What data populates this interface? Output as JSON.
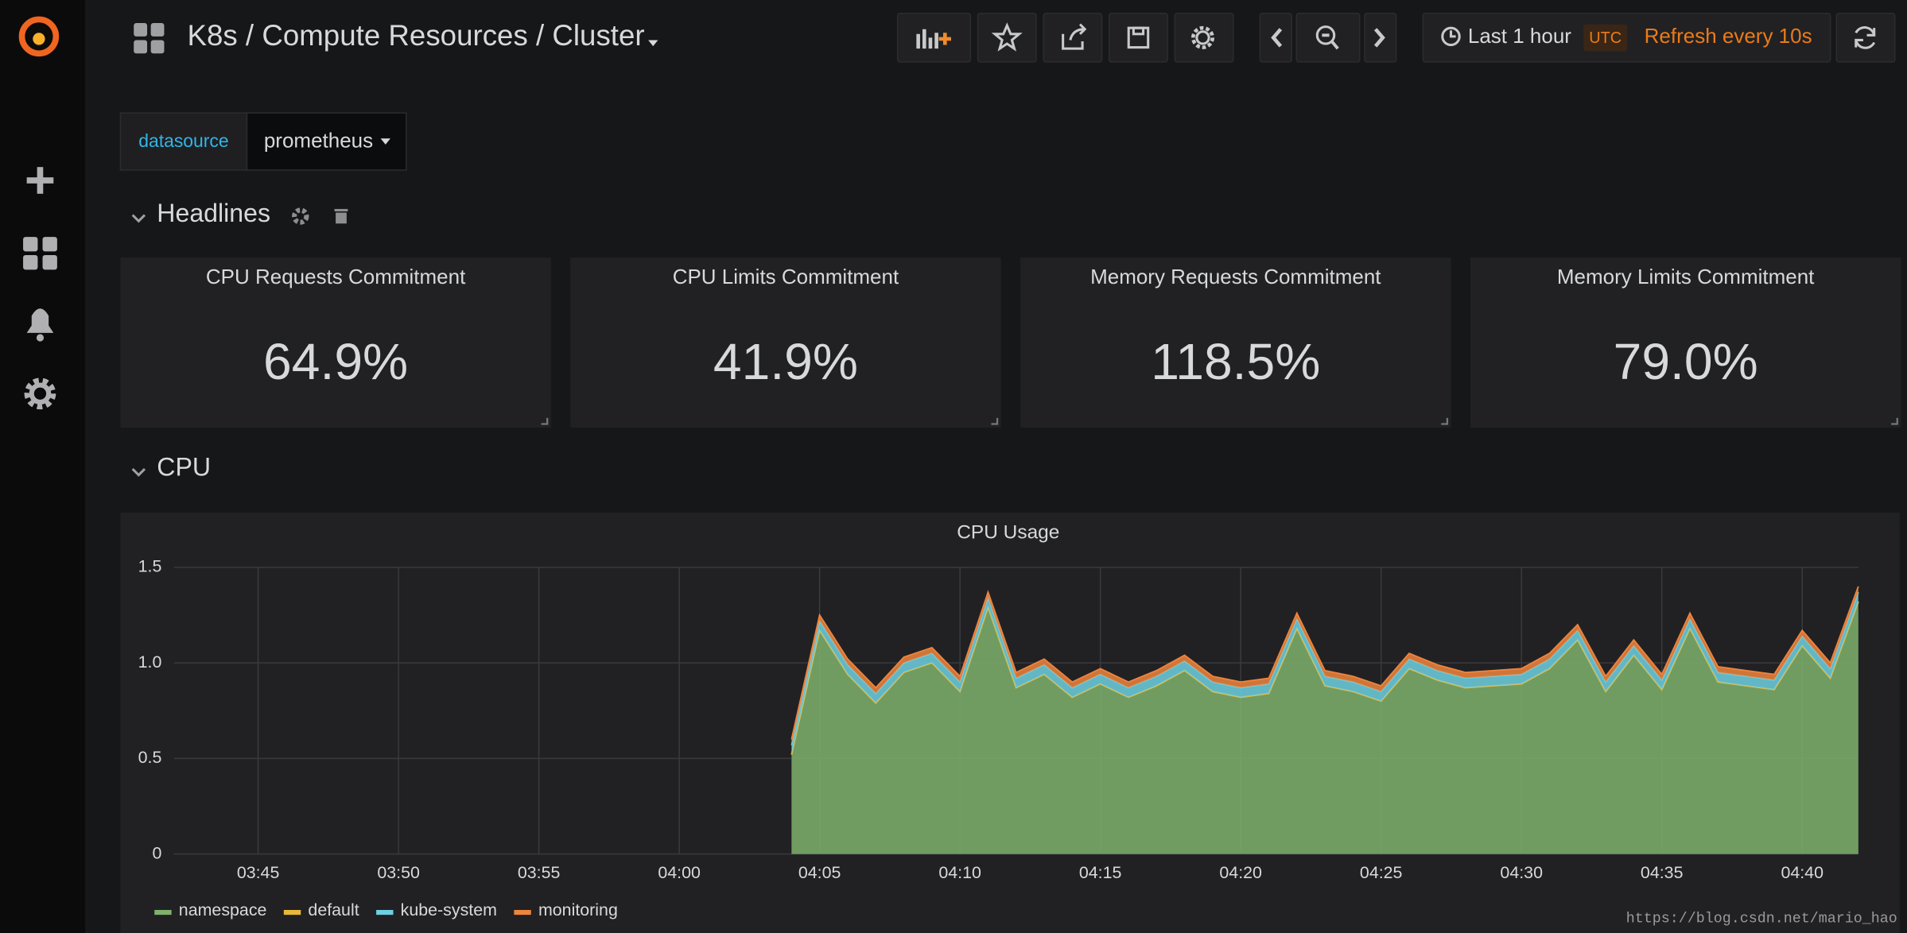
{
  "header": {
    "title": "K8s / Compute Resources / Cluster",
    "time_range": "Last 1 hour",
    "timezone": "UTC",
    "refresh": "Refresh every 10s"
  },
  "variables": [
    {
      "label": "datasource",
      "value": "prometheus"
    }
  ],
  "rows": [
    {
      "title": "Headlines"
    },
    {
      "title": "CPU"
    }
  ],
  "stats": [
    {
      "title": "CPU Requests Commitment",
      "value": "64.9%"
    },
    {
      "title": "CPU Limits Commitment",
      "value": "41.9%"
    },
    {
      "title": "Memory Requests Commitment",
      "value": "118.5%"
    },
    {
      "title": "Memory Limits Commitment",
      "value": "79.0%"
    }
  ],
  "chart_data": {
    "type": "area",
    "stacked": true,
    "title": "CPU Usage",
    "x": [
      "04:04",
      "04:05",
      "04:06",
      "04:07",
      "04:08",
      "04:09",
      "04:10",
      "04:11",
      "04:12",
      "04:13",
      "04:14",
      "04:15",
      "04:16",
      "04:17",
      "04:18",
      "04:19",
      "04:20",
      "04:21",
      "04:22",
      "04:23",
      "04:24",
      "04:25",
      "04:26",
      "04:27",
      "04:28",
      "04:29",
      "04:30",
      "04:31",
      "04:32",
      "04:33",
      "04:34",
      "04:35",
      "04:36",
      "04:37",
      "04:38",
      "04:39",
      "04:40",
      "04:41",
      "04:42"
    ],
    "series": [
      {
        "name": "namespace",
        "color": "#7eb26d",
        "values": [
          0.52,
          1.17,
          0.94,
          0.79,
          0.95,
          1.0,
          0.85,
          1.29,
          0.87,
          0.94,
          0.82,
          0.89,
          0.82,
          0.88,
          0.96,
          0.85,
          0.82,
          0.84,
          1.18,
          0.88,
          0.85,
          0.8,
          0.97,
          0.91,
          0.87,
          0.88,
          0.89,
          0.97,
          1.12,
          0.85,
          1.04,
          0.86,
          1.18,
          0.9,
          0.88,
          0.86,
          1.09,
          0.92,
          1.32
        ]
      },
      {
        "name": "default",
        "color": "#eab839",
        "values": [
          0,
          0,
          0,
          0,
          0,
          0,
          0,
          0,
          0,
          0,
          0,
          0,
          0,
          0,
          0,
          0,
          0,
          0,
          0,
          0,
          0,
          0,
          0,
          0,
          0,
          0,
          0,
          0,
          0,
          0,
          0,
          0,
          0,
          0,
          0,
          0,
          0,
          0,
          0
        ]
      },
      {
        "name": "kube-system",
        "color": "#6ed0e0",
        "values": [
          0.05,
          0.05,
          0.05,
          0.05,
          0.05,
          0.05,
          0.05,
          0.05,
          0.05,
          0.05,
          0.05,
          0.05,
          0.05,
          0.05,
          0.05,
          0.05,
          0.05,
          0.05,
          0.05,
          0.05,
          0.05,
          0.05,
          0.05,
          0.05,
          0.05,
          0.05,
          0.05,
          0.05,
          0.05,
          0.05,
          0.05,
          0.05,
          0.05,
          0.05,
          0.05,
          0.05,
          0.05,
          0.05,
          0.05
        ]
      },
      {
        "name": "monitoring",
        "color": "#ef843c",
        "values": [
          0.03,
          0.03,
          0.03,
          0.03,
          0.03,
          0.03,
          0.03,
          0.03,
          0.03,
          0.03,
          0.03,
          0.03,
          0.03,
          0.03,
          0.03,
          0.03,
          0.03,
          0.03,
          0.03,
          0.03,
          0.03,
          0.03,
          0.03,
          0.03,
          0.03,
          0.03,
          0.03,
          0.03,
          0.03,
          0.03,
          0.03,
          0.03,
          0.03,
          0.03,
          0.03,
          0.03,
          0.03,
          0.03,
          0.03
        ]
      }
    ],
    "xlim": [
      "03:42",
      "04:42"
    ],
    "xticks": [
      "03:45",
      "03:50",
      "03:55",
      "04:00",
      "04:05",
      "04:10",
      "04:15",
      "04:20",
      "04:25",
      "04:30",
      "04:35",
      "04:40"
    ],
    "ylim": [
      0,
      1.5
    ],
    "yticks": [
      0,
      0.5,
      {
        "value": 1,
        "label": "1.0"
      },
      1.5
    ],
    "grid": true,
    "legend": "bottom"
  },
  "watermark": "https://blog.csdn.net/mario_hao"
}
